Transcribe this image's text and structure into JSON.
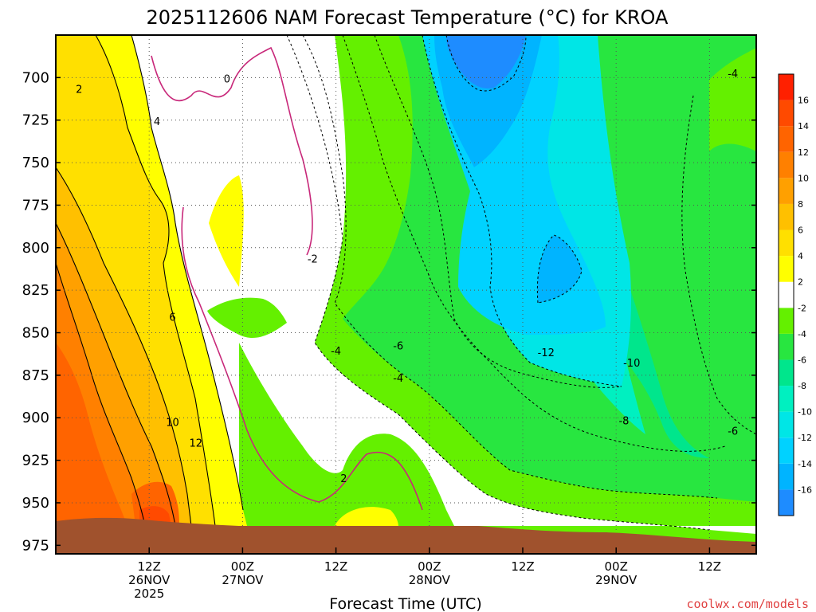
{
  "chart_data": {
    "type": "heatmap",
    "title": "2025112606 NAM Forecast Temperature (°C) for KROA",
    "xlabel": "Forecast Time (UTC)",
    "ylabel": "",
    "y_axis": {
      "unit": "hPa",
      "range": [
        980,
        675
      ],
      "ticks": [
        700,
        725,
        750,
        775,
        800,
        825,
        850,
        875,
        900,
        925,
        950,
        975
      ]
    },
    "x_axis": {
      "range_hours": [
        -6,
        84
      ],
      "ticks": [
        {
          "hour": 6,
          "lines": [
            "12Z",
            "26NOV",
            "2025"
          ]
        },
        {
          "hour": 18,
          "lines": [
            "00Z",
            "27NOV"
          ]
        },
        {
          "hour": 30,
          "lines": [
            "12Z"
          ]
        },
        {
          "hour": 42,
          "lines": [
            "00Z",
            "28NOV"
          ]
        },
        {
          "hour": 54,
          "lines": [
            "12Z"
          ]
        },
        {
          "hour": 66,
          "lines": [
            "00Z",
            "29NOV"
          ]
        },
        {
          "hour": 78,
          "lines": [
            "12Z"
          ]
        }
      ]
    },
    "grid": true,
    "colorbar": {
      "placement": "right",
      "levels": [
        -18,
        -16,
        -14,
        -12,
        -10,
        -8,
        -6,
        -4,
        -2,
        2,
        4,
        6,
        8,
        10,
        12,
        14,
        16,
        18
      ],
      "labels": [
        "-16",
        "-14",
        "-12",
        "-10",
        "-8",
        "-6",
        "-4",
        "-2",
        "2",
        "4",
        "6",
        "8",
        "10",
        "12",
        "14",
        "16"
      ],
      "colors": [
        "#1e8cff",
        "#00b4ff",
        "#00d2ff",
        "#00e6e6",
        "#00f0c0",
        "#00e68c",
        "#28e640",
        "#64f000",
        "#ffffff",
        "#ffff00",
        "#ffe000",
        "#ffc000",
        "#ffa000",
        "#ff8000",
        "#ff6400",
        "#ff4a00",
        "#ff2000"
      ]
    },
    "contour_labels": [
      {
        "text": "2",
        "t": -3,
        "p": 707
      },
      {
        "text": "0",
        "t": 16,
        "p": 701
      },
      {
        "text": "4",
        "t": 7,
        "p": 726
      },
      {
        "text": "6",
        "t": 9,
        "p": 841
      },
      {
        "text": "10",
        "t": 9,
        "p": 903
      },
      {
        "text": "12",
        "t": 12,
        "p": 915
      },
      {
        "text": "-2",
        "t": 27,
        "p": 807
      },
      {
        "text": "-4",
        "t": 30,
        "p": 861
      },
      {
        "text": "-6",
        "t": 38,
        "p": 858
      },
      {
        "text": "-4",
        "t": 38,
        "p": 877
      },
      {
        "text": "2",
        "t": 31,
        "p": 936
      },
      {
        "text": "-12",
        "t": 57,
        "p": 862
      },
      {
        "text": "-10",
        "t": 68,
        "p": 868
      },
      {
        "text": "-8",
        "t": 67,
        "p": 902
      },
      {
        "text": "-6",
        "t": 81,
        "p": 908
      },
      {
        "text": "-4",
        "t": 81,
        "p": 698
      }
    ],
    "terrain_color": "#a0522d"
  },
  "credit": "coolwx.com/models"
}
